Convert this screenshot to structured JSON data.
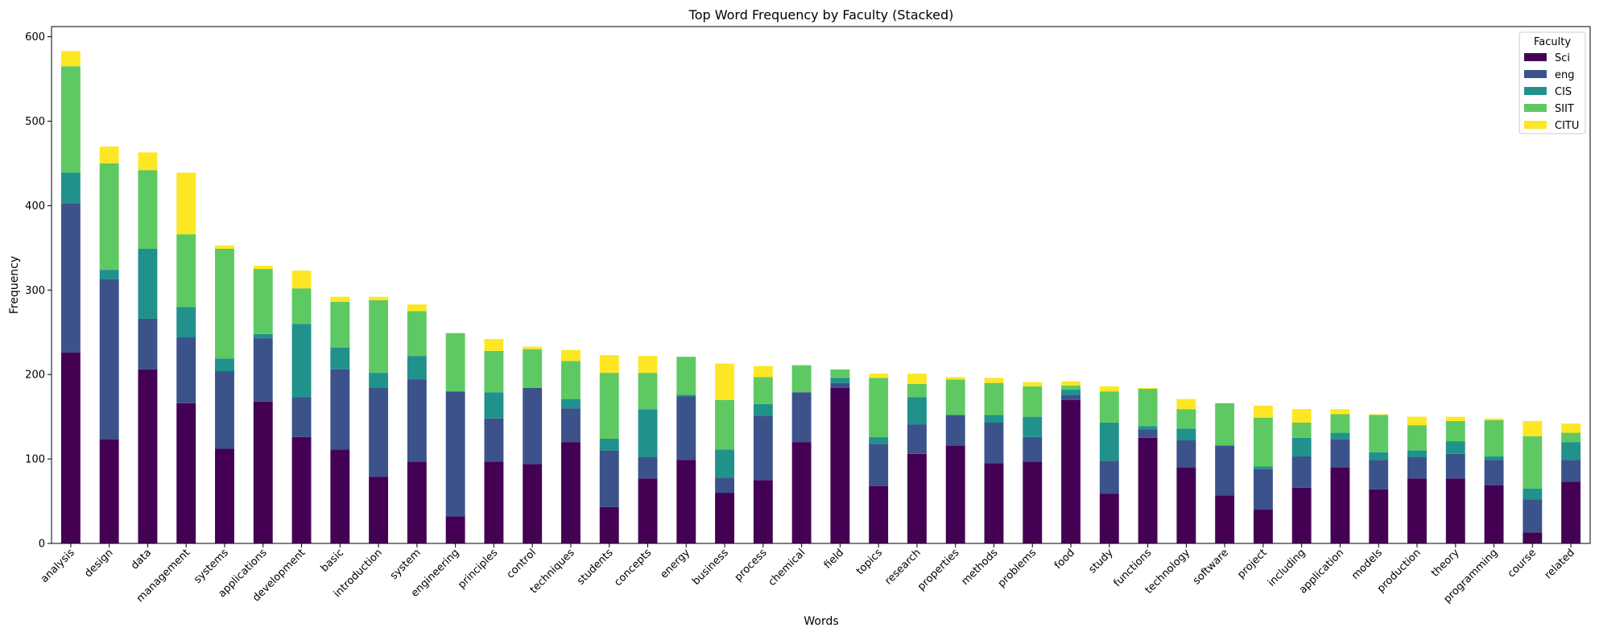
{
  "chart_data": {
    "type": "bar",
    "stacked": true,
    "title": "Top Word Frequency by Faculty (Stacked)",
    "xlabel": "Words",
    "ylabel": "Frequency",
    "ylim": [
      0,
      612
    ],
    "yticks": [
      0,
      100,
      200,
      300,
      400,
      500,
      600
    ],
    "grid": false,
    "legend": {
      "title": "Faculty",
      "position": "top-right"
    },
    "categories": [
      "analysis",
      "design",
      "data",
      "management",
      "systems",
      "applications",
      "development",
      "basic",
      "introduction",
      "system",
      "engineering",
      "principles",
      "control",
      "techniques",
      "students",
      "concepts",
      "energy",
      "business",
      "process",
      "chemical",
      "field",
      "topics",
      "research",
      "properties",
      "methods",
      "problems",
      "food",
      "study",
      "functions",
      "technology",
      "software",
      "project",
      "including",
      "application",
      "models",
      "production",
      "theory",
      "programming",
      "course",
      "related"
    ],
    "series": [
      {
        "name": "Sci",
        "color": "#440154",
        "values": [
          226,
          123,
          206,
          166,
          112,
          168,
          126,
          111,
          79,
          97,
          32,
          97,
          94,
          120,
          43,
          77,
          99,
          60,
          75,
          120,
          184,
          68,
          106,
          116,
          95,
          97,
          170,
          59,
          125,
          90,
          57,
          40,
          66,
          90,
          64,
          77,
          77,
          69,
          13,
          73
        ]
      },
      {
        "name": "eng",
        "color": "#3b528b",
        "values": [
          177,
          190,
          60,
          78,
          92,
          75,
          47,
          95,
          105,
          97,
          148,
          51,
          90,
          40,
          67,
          25,
          75,
          18,
          76,
          59,
          6,
          50,
          35,
          36,
          48,
          29,
          6,
          39,
          10,
          32,
          59,
          48,
          37,
          33,
          35,
          25,
          29,
          30,
          39,
          26
        ]
      },
      {
        "name": "CIS",
        "color": "#21918c",
        "values": [
          36,
          11,
          83,
          36,
          15,
          5,
          87,
          26,
          18,
          28,
          0,
          31,
          0,
          11,
          14,
          57,
          2,
          33,
          14,
          0,
          6,
          8,
          32,
          0,
          9,
          24,
          6,
          45,
          4,
          14,
          0,
          3,
          22,
          8,
          9,
          8,
          15,
          4,
          13,
          21
        ]
      },
      {
        "name": "SIIT",
        "color": "#5ec962",
        "values": [
          126,
          126,
          93,
          86,
          130,
          77,
          42,
          54,
          86,
          53,
          69,
          49,
          46,
          45,
          78,
          43,
          45,
          59,
          32,
          32,
          10,
          70,
          16,
          42,
          38,
          36,
          5,
          37,
          44,
          23,
          50,
          58,
          18,
          22,
          44,
          30,
          24,
          43,
          62,
          11
        ]
      },
      {
        "name": "CITU",
        "color": "#fde725",
        "values": [
          18,
          20,
          21,
          73,
          4,
          4,
          21,
          6,
          4,
          8,
          0,
          14,
          3,
          13,
          21,
          20,
          0,
          43,
          13,
          0,
          0,
          5,
          12,
          3,
          6,
          5,
          5,
          6,
          1,
          12,
          0,
          14,
          16,
          6,
          1,
          10,
          5,
          2,
          18,
          11
        ]
      }
    ]
  }
}
